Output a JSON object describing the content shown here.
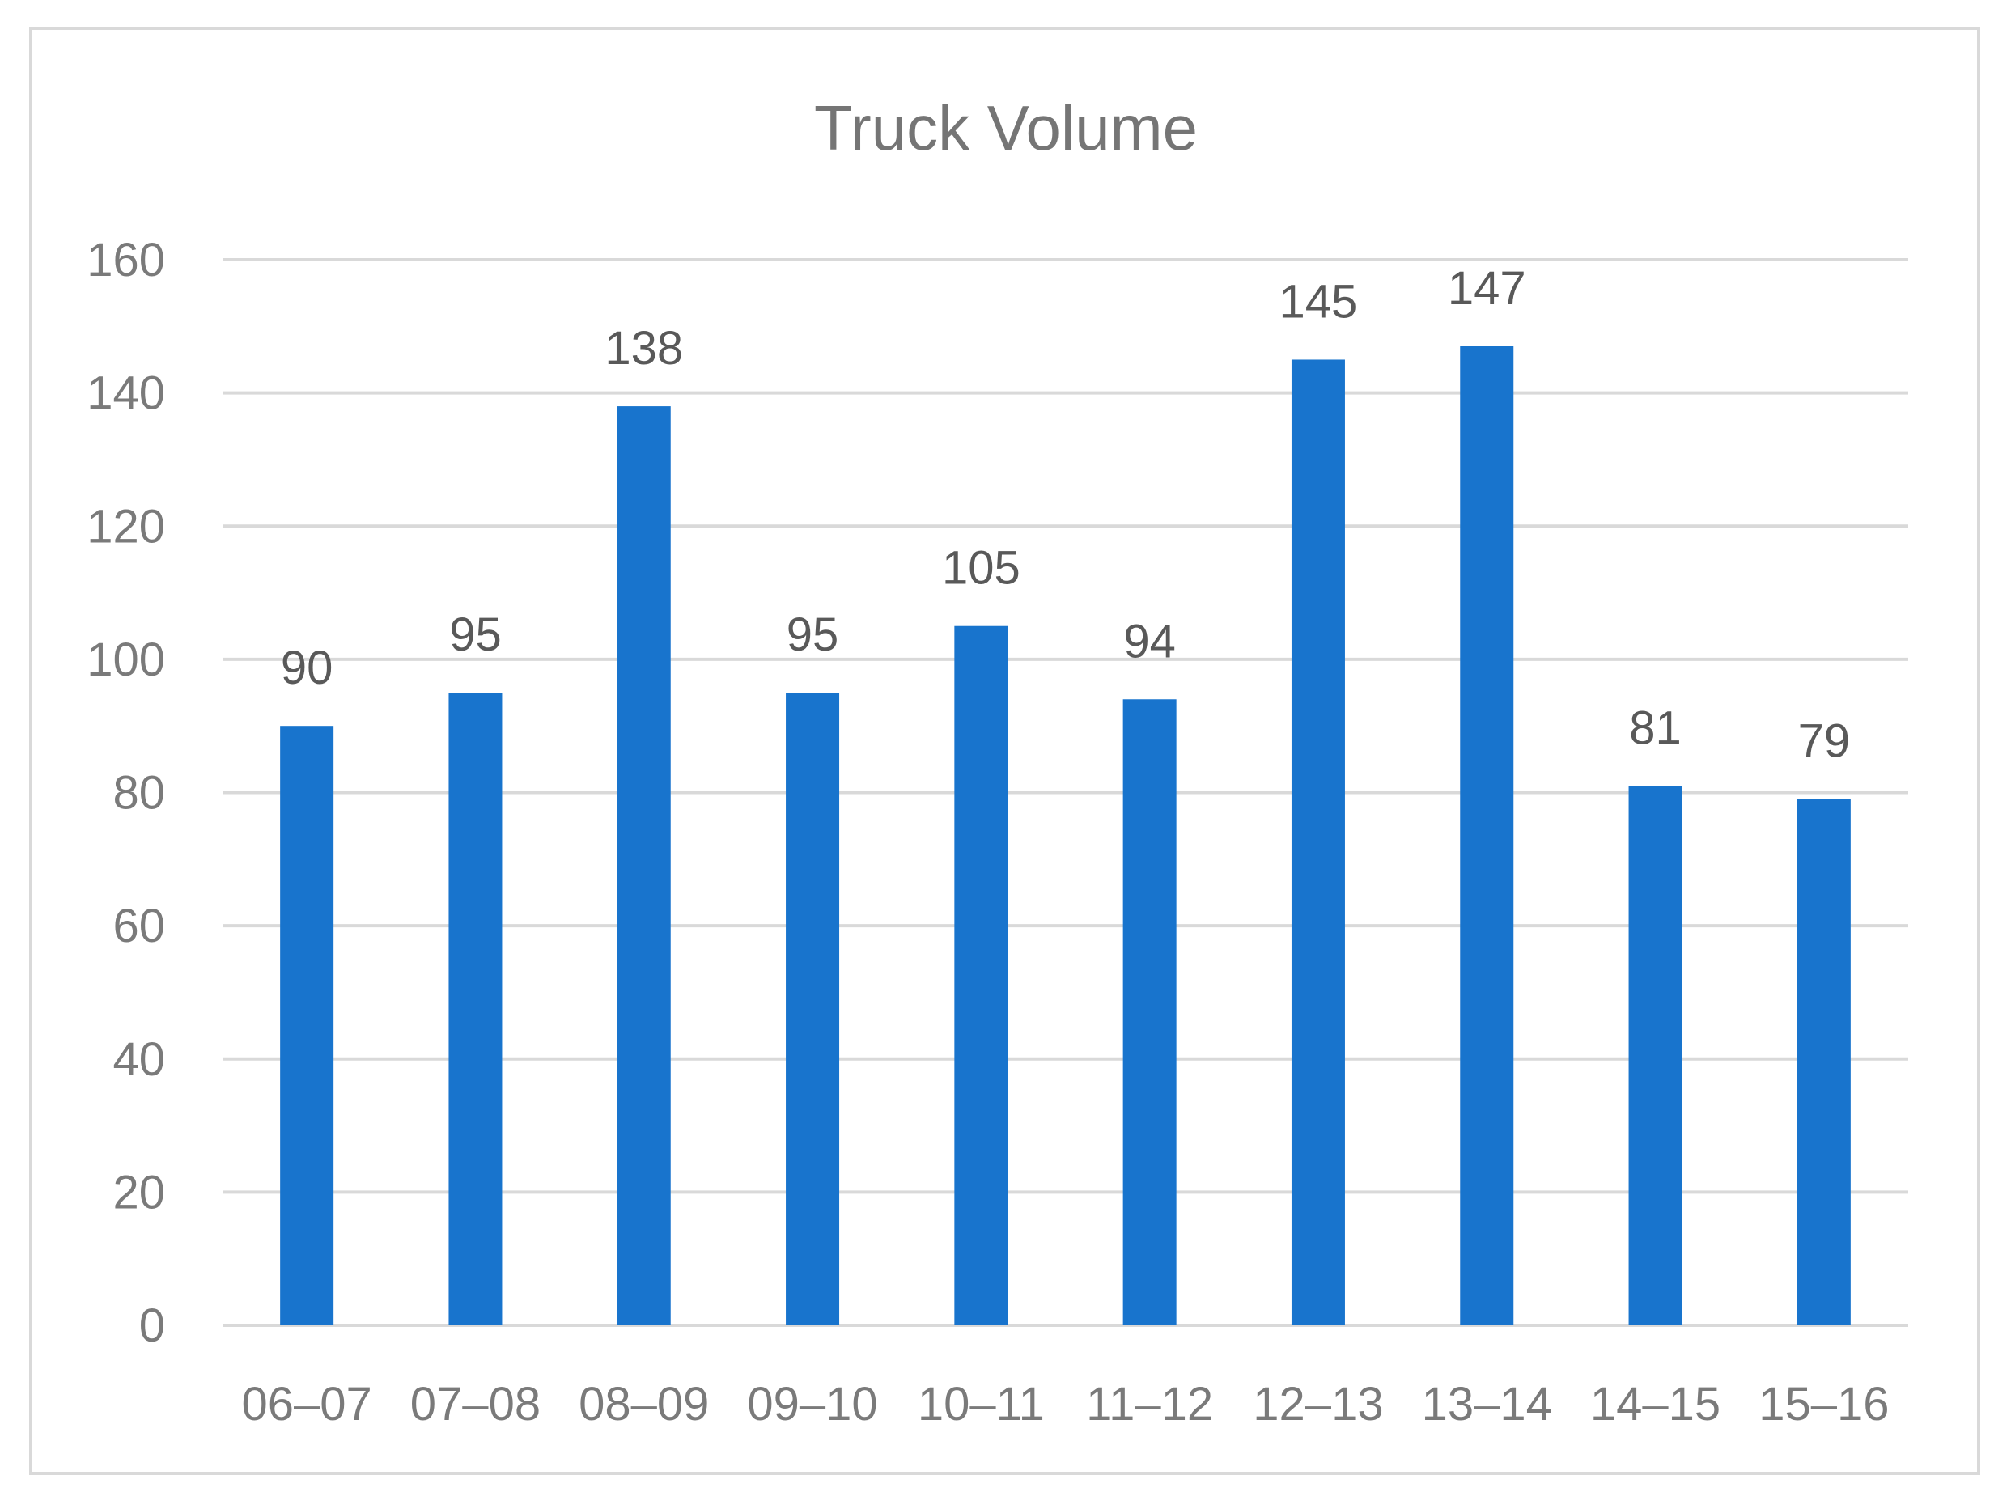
{
  "chart_data": {
    "type": "bar",
    "title": "Truck Volume",
    "xlabel": "",
    "ylabel": "",
    "categories": [
      "06–07",
      "07–08",
      "08–09",
      "09–10",
      "10–11",
      "11–12",
      "12–13",
      "13–14",
      "14–15",
      "15–16"
    ],
    "values": [
      90,
      95,
      138,
      95,
      105,
      94,
      145,
      147,
      81,
      79
    ],
    "data_labels": [
      "90",
      "95",
      "138",
      "95",
      "105",
      "94",
      "145",
      "147",
      "81",
      "79"
    ],
    "ylim": [
      0,
      160
    ],
    "y_ticks": [
      0,
      20,
      40,
      60,
      80,
      100,
      120,
      140,
      160
    ],
    "y_tick_labels": [
      "0",
      "20",
      "40",
      "60",
      "80",
      "100",
      "120",
      "140",
      "160"
    ],
    "grid": true,
    "legend": "none",
    "colors": {
      "bar": "#1874cd",
      "grid": "#d9d9d9",
      "frame": "#d9d9d9"
    }
  }
}
